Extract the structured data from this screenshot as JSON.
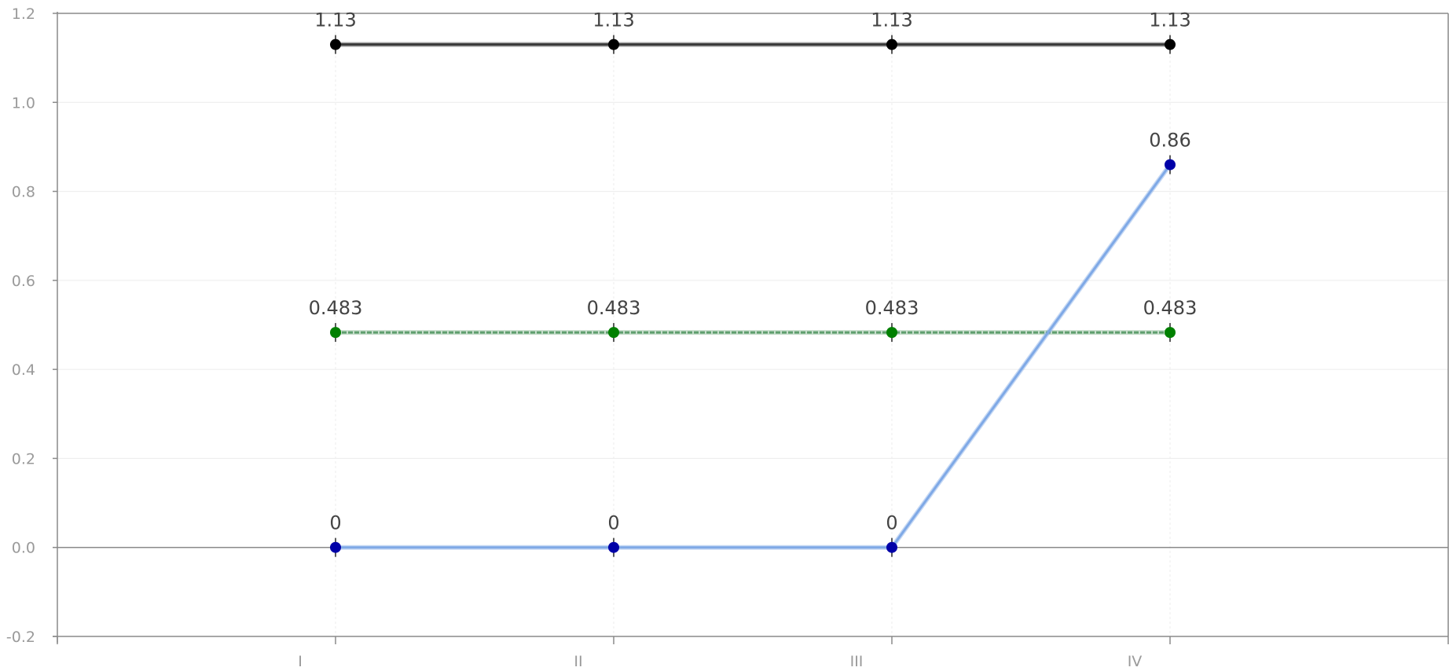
{
  "chart_data": {
    "type": "line",
    "categories": [
      "I",
      "II",
      "III",
      "IV"
    ],
    "ylim": [
      -0.2,
      1.2
    ],
    "yticks": [
      "-0.2",
      "0.0",
      "0.2",
      "0.4",
      "0.6",
      "0.8",
      "1.0",
      "1.2"
    ],
    "series": [
      {
        "values": [
          1.13,
          1.13,
          1.13,
          1.13
        ],
        "labels": [
          "1.13",
          "1.13",
          "1.13",
          "1.13"
        ],
        "line_color": "#3a3a3a",
        "marker_color": "#000000",
        "style": "solid"
      },
      {
        "values": [
          0.483,
          0.483,
          0.483,
          0.483
        ],
        "labels": [
          "0.483",
          "0.483",
          "0.483",
          "0.483"
        ],
        "line_color": "#5f9e6e",
        "marker_color": "#008000",
        "style": "dashed"
      },
      {
        "values": [
          0,
          0,
          0,
          0.86
        ],
        "labels": [
          "0",
          "0",
          "0",
          "0.86"
        ],
        "line_color": "#7fa9e6",
        "marker_color": "#0000a8",
        "style": "solid"
      }
    ]
  }
}
